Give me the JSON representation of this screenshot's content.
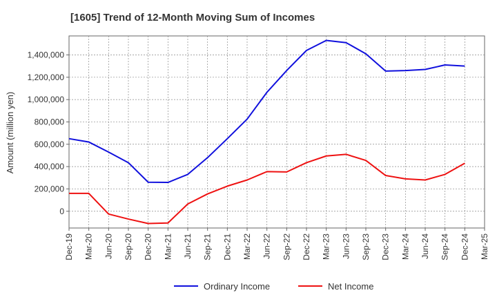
{
  "chart_data": {
    "type": "line",
    "title": "[1605]  Trend of 12-Month Moving Sum of Incomes",
    "xlabel": "",
    "ylabel": "Amount (million yen)",
    "categories": [
      "Dec-19",
      "Mar-20",
      "Jun-20",
      "Sep-20",
      "Dec-20",
      "Mar-21",
      "Jun-21",
      "Sep-21",
      "Dec-21",
      "Mar-22",
      "Jun-22",
      "Sep-22",
      "Dec-22",
      "Mar-23",
      "Jun-23",
      "Sep-23",
      "Dec-23",
      "Mar-24",
      "Jun-24",
      "Sep-24",
      "Dec-24",
      "Mar-25"
    ],
    "ylim": [
      -150000,
      1570000
    ],
    "yticks": [
      0,
      200000,
      400000,
      600000,
      800000,
      1000000,
      1200000,
      1400000
    ],
    "ytick_labels": [
      "0",
      "200,000",
      "400,000",
      "600,000",
      "800,000",
      "1,000,000",
      "1,200,000",
      "1,400,000"
    ],
    "grid": true,
    "legend_position": "bottom-center",
    "series": [
      {
        "name": "Ordinary Income",
        "color": "#1010dd",
        "values": [
          650000,
          620000,
          530000,
          435000,
          260000,
          258000,
          330000,
          480000,
          650000,
          825000,
          1065000,
          1260000,
          1440000,
          1530000,
          1510000,
          1410000,
          1255000,
          1260000,
          1270000,
          1310000,
          1300000,
          null
        ]
      },
      {
        "name": "Net Income",
        "color": "#ee1111",
        "values": [
          160000,
          160000,
          -25000,
          -70000,
          -110000,
          -105000,
          65000,
          155000,
          225000,
          280000,
          355000,
          352000,
          435000,
          495000,
          510000,
          455000,
          320000,
          290000,
          280000,
          330000,
          430000,
          null
        ]
      }
    ]
  }
}
